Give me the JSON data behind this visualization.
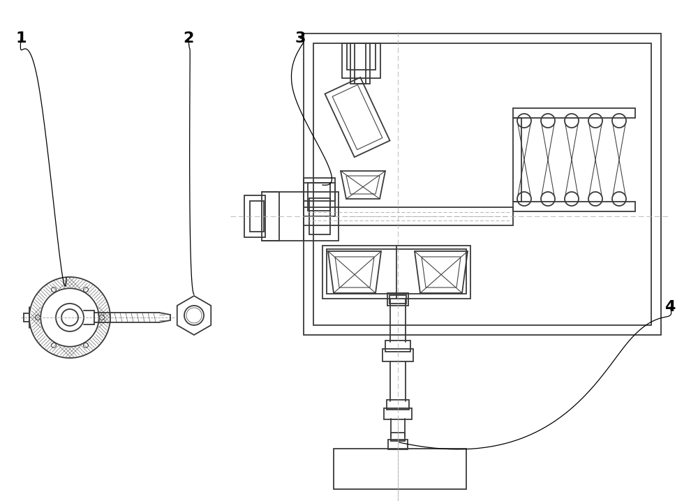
{
  "bg_color": "#ffffff",
  "line_color": "#3a3a3a",
  "lw": 1.3,
  "tlw": 0.75,
  "clc": "#aaaaaa",
  "fig_width": 10.0,
  "fig_height": 7.18,
  "dpi": 100
}
